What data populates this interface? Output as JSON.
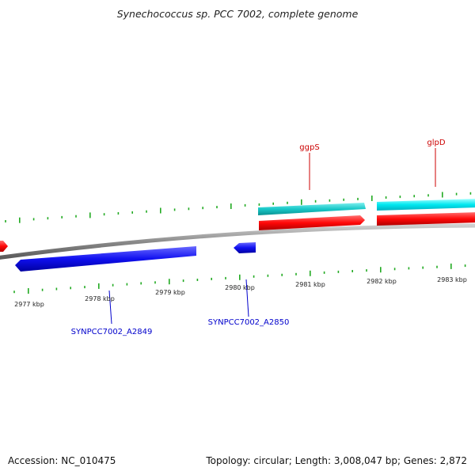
{
  "title": "Synechococcus sp. PCC 7002, complete genome",
  "footer": {
    "accession": "Accession: NC_010475",
    "summary": "Topology: circular; Length: 3,008,047 bp; Genes: 2,872"
  },
  "colors": {
    "backbone": "#888888",
    "tick": "#22aa22",
    "plus_gene_top": "#22c8c8",
    "plus_gene_bottom": "#ff1010",
    "minus_gene": "#1010e8",
    "plus_label": "#cc0000",
    "minus_label": "#0000cc",
    "axis_label": "#222222"
  },
  "scale_labels": [
    "2977 kbp",
    "2978 kbp",
    "2979 kbp",
    "2980 kbp",
    "2981 kbp",
    "2982 kbp",
    "2983 kbp"
  ],
  "gene_labels": [
    {
      "text": "ggpS",
      "strand": "plus"
    },
    {
      "text": "glpD",
      "strand": "plus"
    },
    {
      "text": "SYNPCC7002_A2849",
      "strand": "minus"
    },
    {
      "text": "SYNPCC7002_A2850",
      "strand": "minus"
    }
  ]
}
